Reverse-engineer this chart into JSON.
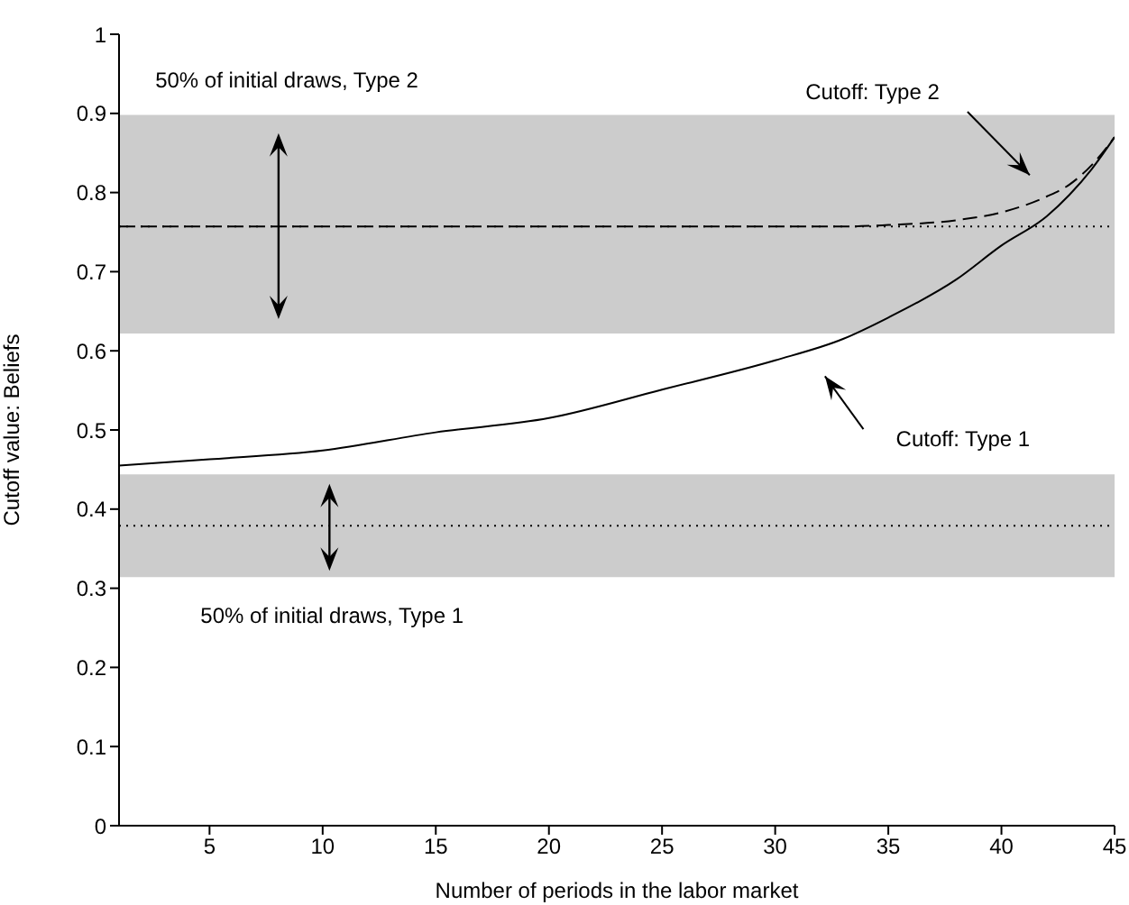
{
  "chart_data": {
    "type": "line",
    "xlabel": "Number of periods in the labor market",
    "ylabel": "Cutoff value: Beliefs",
    "xlim": [
      1,
      45
    ],
    "xticks": [
      5,
      10,
      15,
      20,
      25,
      30,
      35,
      40,
      45
    ],
    "ylim": [
      0,
      1
    ],
    "yticks": [
      0,
      0.1,
      0.2,
      0.3,
      0.4,
      0.5,
      0.6,
      0.7,
      0.8,
      0.9,
      1
    ],
    "marker": "none",
    "series": [
      {
        "color": "#000000",
        "line_style": "solid",
        "x": [
          1,
          5,
          10,
          15,
          20,
          25,
          30,
          33,
          35,
          38,
          40,
          42,
          43,
          44,
          45
        ],
        "values": [
          0.455,
          0.463,
          0.474,
          0.497,
          0.515,
          0.551,
          0.588,
          0.615,
          0.642,
          0.69,
          0.733,
          0.77,
          0.797,
          0.83,
          0.87
        ]
      },
      {
        "color": "#000000",
        "line_style": "dashed",
        "x": [
          1,
          10,
          20,
          30,
          33,
          35,
          38,
          40,
          42,
          43,
          44,
          45
        ],
        "values": [
          0.757,
          0.757,
          0.757,
          0.757,
          0.757,
          0.759,
          0.765,
          0.775,
          0.795,
          0.81,
          0.835,
          0.87
        ]
      }
    ],
    "bands": [
      {
        "axis": "y",
        "from": 0.622,
        "to": 0.898,
        "color": "#cccccc"
      },
      {
        "axis": "y",
        "from": 0.314,
        "to": 0.444,
        "color": "#cccccc"
      }
    ],
    "ref_lines": [
      {
        "axis": "y",
        "value": 0.757,
        "color": "#000000",
        "line_style": "dotted"
      },
      {
        "axis": "y",
        "value": 0.379,
        "color": "#000000",
        "line_style": "dotted"
      }
    ],
    "annotations": [
      "50% of initial draws, Type 2",
      "Cutoff: Type 2",
      "Cutoff: Type 1",
      "50% of initial draws, Type 1"
    ]
  }
}
